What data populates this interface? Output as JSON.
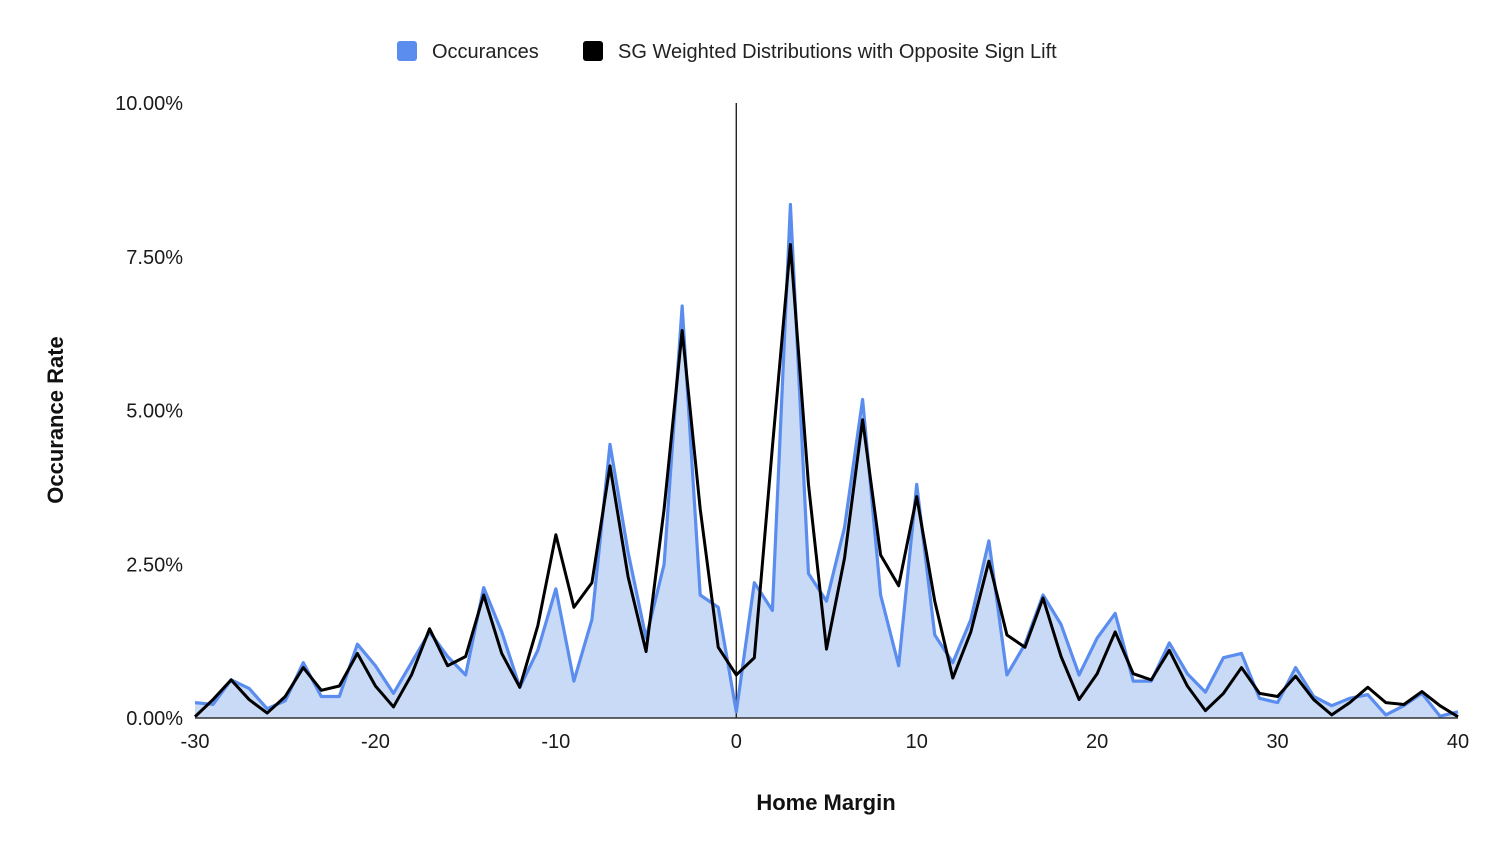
{
  "chart_data": {
    "type": "area",
    "title": "",
    "xlabel": "Home Margin",
    "ylabel": "Occurance Rate",
    "xlim": [
      -30,
      40
    ],
    "ylim": [
      0,
      10
    ],
    "x_ticks": [
      "-30",
      "-20",
      "-10",
      "0",
      "10",
      "20",
      "30",
      "40"
    ],
    "y_ticks": [
      "0.00%",
      "2.50%",
      "5.00%",
      "7.50%",
      "10.00%"
    ],
    "y_unit": "percent",
    "legend_position": "top-center",
    "zero_line": true,
    "x": [
      -30,
      -29,
      -28,
      -27,
      -26,
      -25,
      -24,
      -23,
      -22,
      -21,
      -20,
      -19,
      -18,
      -17,
      -16,
      -15,
      -14,
      -13,
      -12,
      -11,
      -10,
      -9,
      -8,
      -7,
      -6,
      -5,
      -4,
      -3,
      -2,
      -1,
      0,
      1,
      2,
      3,
      4,
      5,
      6,
      7,
      8,
      9,
      10,
      11,
      12,
      13,
      14,
      15,
      16,
      17,
      18,
      19,
      20,
      21,
      22,
      23,
      24,
      25,
      26,
      27,
      28,
      29,
      30,
      31,
      32,
      33,
      34,
      35,
      36,
      37,
      38,
      39,
      40
    ],
    "series": [
      {
        "name": "Occurances",
        "color": "#5b8def",
        "fill": "#c9daf7",
        "values": [
          0.25,
          0.22,
          0.62,
          0.48,
          0.15,
          0.28,
          0.9,
          0.35,
          0.35,
          1.2,
          0.85,
          0.4,
          0.9,
          1.4,
          1.0,
          0.7,
          2.12,
          1.4,
          0.5,
          1.1,
          2.1,
          0.6,
          1.6,
          4.45,
          2.7,
          1.3,
          2.5,
          6.7,
          2.0,
          1.8,
          0.1,
          2.2,
          1.75,
          8.35,
          2.35,
          1.9,
          3.1,
          5.18,
          2.0,
          0.85,
          3.8,
          1.35,
          0.9,
          1.6,
          2.88,
          0.7,
          1.2,
          2.0,
          1.52,
          0.7,
          1.3,
          1.7,
          0.6,
          0.6,
          1.22,
          0.72,
          0.42,
          0.98,
          1.05,
          0.32,
          0.25,
          0.82,
          0.35,
          0.2,
          0.32,
          0.38,
          0.05,
          0.2,
          0.4,
          0.03,
          0.1
        ]
      },
      {
        "name": "SG Weighted Distributions with Opposite Sign Lift",
        "color": "#000000",
        "values": [
          0.02,
          0.3,
          0.62,
          0.3,
          0.08,
          0.35,
          0.82,
          0.45,
          0.52,
          1.05,
          0.52,
          0.18,
          0.7,
          1.45,
          0.85,
          1.0,
          2.0,
          1.05,
          0.5,
          1.5,
          2.98,
          1.8,
          2.2,
          4.1,
          2.3,
          1.08,
          3.4,
          6.3,
          3.4,
          1.15,
          0.7,
          0.98,
          4.4,
          7.7,
          3.8,
          1.12,
          2.6,
          4.85,
          2.65,
          2.15,
          3.6,
          1.9,
          0.65,
          1.4,
          2.55,
          1.35,
          1.15,
          1.95,
          1.0,
          0.3,
          0.72,
          1.4,
          0.72,
          0.62,
          1.1,
          0.52,
          0.12,
          0.4,
          0.82,
          0.4,
          0.35,
          0.68,
          0.3,
          0.05,
          0.25,
          0.5,
          0.25,
          0.22,
          0.43,
          0.2,
          0.02
        ]
      }
    ]
  }
}
